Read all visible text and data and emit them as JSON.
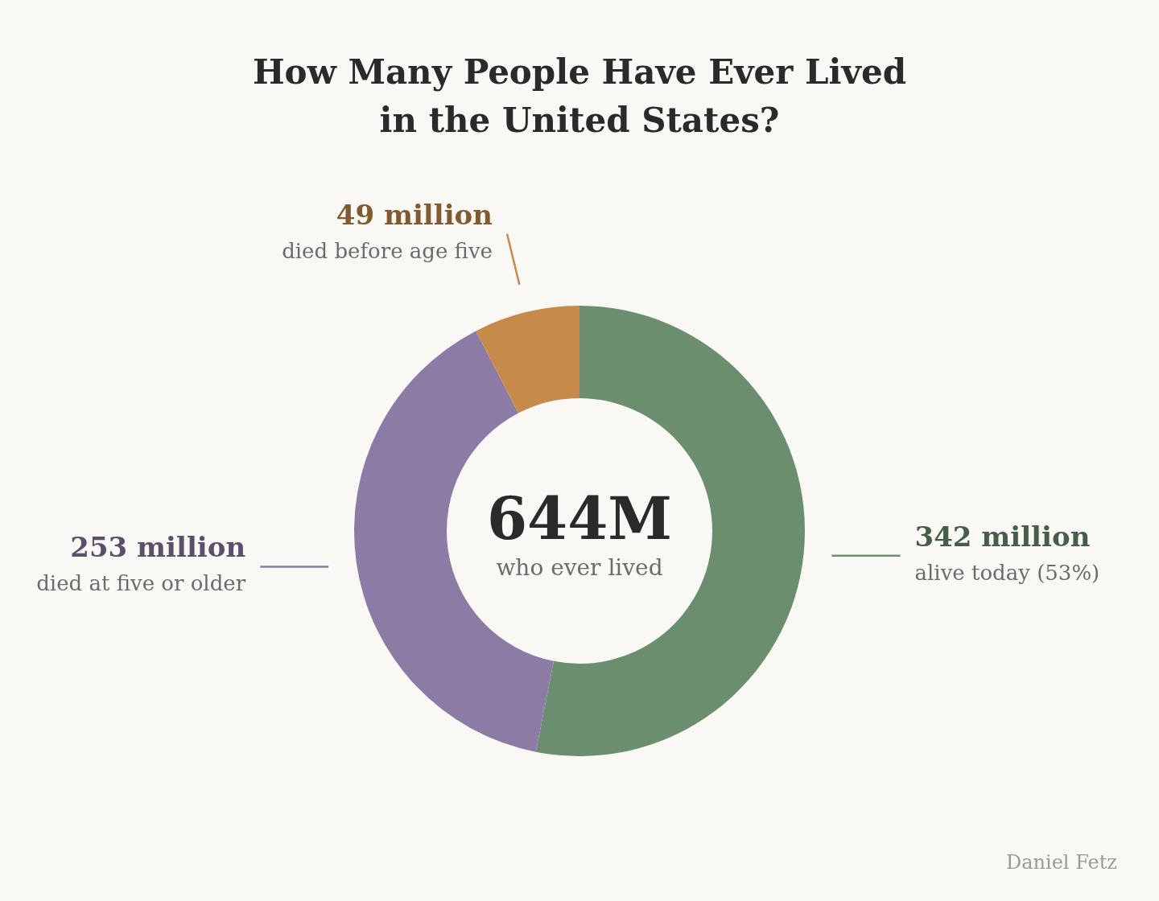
{
  "chart_data": {
    "type": "donut",
    "title": "How Many People Have Ever Lived\nin the United States?",
    "categories": [
      "alive today (53%)",
      "died at five or older",
      "died before age five"
    ],
    "values": [
      342,
      253,
      49
    ],
    "colors": [
      "#6b8f6e",
      "#8b7ba5",
      "#c68a4a"
    ],
    "value_labels": [
      "342 million",
      "253 million",
      "49 million"
    ],
    "annotations": [
      "644M",
      "who ever lived",
      "Daniel Fetz"
    ]
  }
}
